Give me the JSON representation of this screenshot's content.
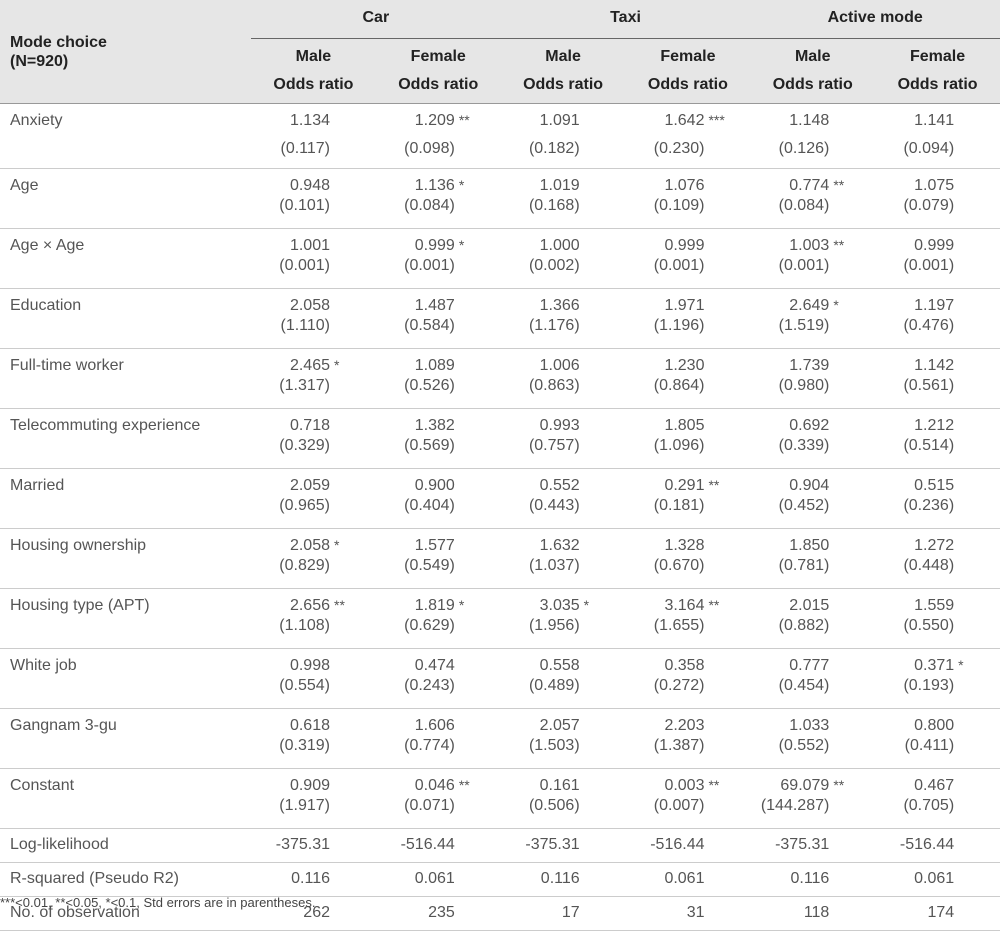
{
  "header": {
    "corner_title": "Mode choice",
    "corner_subtitle": "(N=920)",
    "groups": [
      "Car",
      "Taxi",
      "Active mode"
    ],
    "sub_columns": [
      {
        "gender": "Male",
        "stat": "Odds ratio"
      },
      {
        "gender": "Female",
        "stat": "Odds ratio"
      },
      {
        "gender": "Male",
        "stat": "Odds ratio"
      },
      {
        "gender": "Female",
        "stat": "Odds ratio"
      },
      {
        "gender": "Male",
        "stat": "Odds ratio"
      },
      {
        "gender": "Female",
        "stat": "Odds ratio"
      }
    ]
  },
  "rows": [
    {
      "label": "Anxiety",
      "cells": [
        {
          "v": "1.134",
          "se": "(0.117)",
          "sig": ""
        },
        {
          "v": "1.209",
          "se": "(0.098)",
          "sig": "**"
        },
        {
          "v": "1.091",
          "se": "(0.182)",
          "sig": ""
        },
        {
          "v": "1.642",
          "se": "(0.230)",
          "sig": "***"
        },
        {
          "v": "1.148",
          "se": "(0.126)",
          "sig": ""
        },
        {
          "v": "1.141",
          "se": "(0.094)",
          "sig": ""
        }
      ]
    },
    {
      "label": "Age",
      "cells": [
        {
          "v": "0.948",
          "se": "(0.101)",
          "sig": ""
        },
        {
          "v": "1.136",
          "se": "(0.084)",
          "sig": "*"
        },
        {
          "v": "1.019",
          "se": "(0.168)",
          "sig": ""
        },
        {
          "v": "1.076",
          "se": "(0.109)",
          "sig": ""
        },
        {
          "v": "0.774",
          "se": "(0.084)",
          "sig": "**"
        },
        {
          "v": "1.075",
          "se": "(0.079)",
          "sig": ""
        }
      ]
    },
    {
      "label": "Age × Age",
      "cells": [
        {
          "v": "1.001",
          "se": "(0.001)",
          "sig": ""
        },
        {
          "v": "0.999",
          "se": "(0.001)",
          "sig": "*"
        },
        {
          "v": "1.000",
          "se": "(0.002)",
          "sig": ""
        },
        {
          "v": "0.999",
          "se": "(0.001)",
          "sig": ""
        },
        {
          "v": "1.003",
          "se": "(0.001)",
          "sig": "**"
        },
        {
          "v": "0.999",
          "se": "(0.001)",
          "sig": ""
        }
      ]
    },
    {
      "label": "Education",
      "cells": [
        {
          "v": "2.058",
          "se": "(1.110)",
          "sig": ""
        },
        {
          "v": "1.487",
          "se": "(0.584)",
          "sig": ""
        },
        {
          "v": "1.366",
          "se": "(1.176)",
          "sig": ""
        },
        {
          "v": "1.971",
          "se": "(1.196)",
          "sig": ""
        },
        {
          "v": "2.649",
          "se": "(1.519)",
          "sig": "*"
        },
        {
          "v": "1.197",
          "se": "(0.476)",
          "sig": ""
        }
      ]
    },
    {
      "label": "Full-time worker",
      "cells": [
        {
          "v": "2.465",
          "se": "(1.317)",
          "sig": "*"
        },
        {
          "v": "1.089",
          "se": "(0.526)",
          "sig": ""
        },
        {
          "v": "1.006",
          "se": "(0.863)",
          "sig": ""
        },
        {
          "v": "1.230",
          "se": "(0.864)",
          "sig": ""
        },
        {
          "v": "1.739",
          "se": "(0.980)",
          "sig": ""
        },
        {
          "v": "1.142",
          "se": "(0.561)",
          "sig": ""
        }
      ]
    },
    {
      "label": "Telecommuting experience",
      "cells": [
        {
          "v": "0.718",
          "se": "(0.329)",
          "sig": ""
        },
        {
          "v": "1.382",
          "se": "(0.569)",
          "sig": ""
        },
        {
          "v": "0.993",
          "se": "(0.757)",
          "sig": ""
        },
        {
          "v": "1.805",
          "se": "(1.096)",
          "sig": ""
        },
        {
          "v": "0.692",
          "se": "(0.339)",
          "sig": ""
        },
        {
          "v": "1.212",
          "se": "(0.514)",
          "sig": ""
        }
      ]
    },
    {
      "label": "Married",
      "cells": [
        {
          "v": "2.059",
          "se": "(0.965)",
          "sig": ""
        },
        {
          "v": "0.900",
          "se": "(0.404)",
          "sig": ""
        },
        {
          "v": "0.552",
          "se": "(0.443)",
          "sig": ""
        },
        {
          "v": "0.291",
          "se": "(0.181)",
          "sig": "**"
        },
        {
          "v": "0.904",
          "se": "(0.452)",
          "sig": ""
        },
        {
          "v": "0.515",
          "se": "(0.236)",
          "sig": ""
        }
      ]
    },
    {
      "label": "Housing ownership",
      "cells": [
        {
          "v": "2.058",
          "se": "(0.829)",
          "sig": "*"
        },
        {
          "v": "1.577",
          "se": "(0.549)",
          "sig": ""
        },
        {
          "v": "1.632",
          "se": "(1.037)",
          "sig": ""
        },
        {
          "v": "1.328",
          "se": "(0.670)",
          "sig": ""
        },
        {
          "v": "1.850",
          "se": "(0.781)",
          "sig": ""
        },
        {
          "v": "1.272",
          "se": "(0.448)",
          "sig": ""
        }
      ]
    },
    {
      "label": "Housing type (APT)",
      "cells": [
        {
          "v": "2.656",
          "se": "(1.108)",
          "sig": "**"
        },
        {
          "v": "1.819",
          "se": "(0.629)",
          "sig": "*"
        },
        {
          "v": "3.035",
          "se": "(1.956)",
          "sig": "*"
        },
        {
          "v": "3.164",
          "se": "(1.655)",
          "sig": "**"
        },
        {
          "v": "2.015",
          "se": "(0.882)",
          "sig": ""
        },
        {
          "v": "1.559",
          "se": "(0.550)",
          "sig": ""
        }
      ]
    },
    {
      "label": "White job",
      "cells": [
        {
          "v": "0.998",
          "se": "(0.554)",
          "sig": ""
        },
        {
          "v": "0.474",
          "se": "(0.243)",
          "sig": ""
        },
        {
          "v": "0.558",
          "se": "(0.489)",
          "sig": ""
        },
        {
          "v": "0.358",
          "se": "(0.272)",
          "sig": ""
        },
        {
          "v": "0.777",
          "se": "(0.454)",
          "sig": ""
        },
        {
          "v": "0.371",
          "se": "(0.193)",
          "sig": "*"
        }
      ]
    },
    {
      "label": "Gangnam 3-gu",
      "cells": [
        {
          "v": "0.618",
          "se": "(0.319)",
          "sig": ""
        },
        {
          "v": "1.606",
          "se": "(0.774)",
          "sig": ""
        },
        {
          "v": "2.057",
          "se": "(1.503)",
          "sig": ""
        },
        {
          "v": "2.203",
          "se": "(1.387)",
          "sig": ""
        },
        {
          "v": "1.033",
          "se": "(0.552)",
          "sig": ""
        },
        {
          "v": "0.800",
          "se": "(0.411)",
          "sig": ""
        }
      ]
    },
    {
      "label": "Constant",
      "cells": [
        {
          "v": "0.909",
          "se": "(1.917)",
          "sig": ""
        },
        {
          "v": "0.046",
          "se": "(0.071)",
          "sig": "**"
        },
        {
          "v": "0.161",
          "se": "(0.506)",
          "sig": ""
        },
        {
          "v": "0.003",
          "se": "(0.007)",
          "sig": "**"
        },
        {
          "v": "69.079",
          "se": "(144.287)",
          "sig": "**"
        },
        {
          "v": "0.467",
          "se": "(0.705)",
          "sig": ""
        }
      ]
    }
  ],
  "summary_rows": [
    {
      "label": "Log-likelihood",
      "values": [
        "-375.31",
        "-516.44",
        "-375.31",
        "-516.44",
        "-375.31",
        "-516.44"
      ]
    },
    {
      "label": "R-squared (Pseudo R2)",
      "values": [
        "0.116",
        "0.061",
        "0.116",
        "0.061",
        "0.116",
        "0.061"
      ]
    },
    {
      "label": "No. of observation",
      "values": [
        "262",
        "235",
        "17",
        "31",
        "118",
        "174"
      ]
    }
  ],
  "footnote": "***<0.01, **<0.05, *<0.1, Std errors are in parentheses."
}
